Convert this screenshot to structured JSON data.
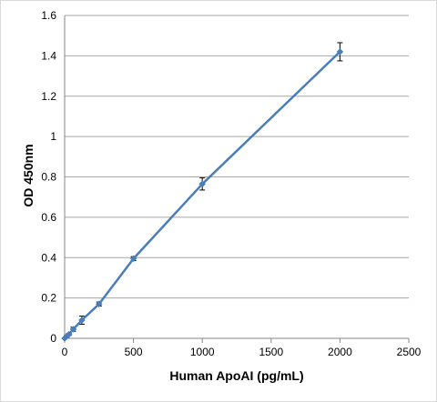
{
  "chart_data": {
    "type": "line",
    "title": "",
    "xlabel": "Human ApoAI (pg/mL)",
    "ylabel": "OD 450nm",
    "xlim": [
      0,
      2500
    ],
    "ylim": [
      0,
      1.6
    ],
    "x_ticks": [
      "0",
      "500",
      "1000",
      "1500",
      "2000",
      "2500"
    ],
    "y_ticks": [
      "0",
      "0.2",
      "0.4",
      "0.6",
      "0.8",
      "1",
      "1.2",
      "1.4",
      "1.6"
    ],
    "grid": "horizontal",
    "legend": "none",
    "series": [
      {
        "x": [
          0,
          15.6,
          31.25,
          62.5,
          125,
          250,
          500,
          1000,
          2000
        ],
        "y": [
          0.0,
          0.01,
          0.02,
          0.045,
          0.09,
          0.17,
          0.395,
          0.765,
          1.42
        ],
        "error": [
          0.0,
          0.005,
          0.005,
          0.01,
          0.02,
          0.01,
          0.01,
          0.03,
          0.045
        ]
      }
    ],
    "colors": {
      "line": "#4a7ebb",
      "marker": "#4a7ebb",
      "grid": "#a6a6a6",
      "errorbar": "#000000"
    }
  }
}
